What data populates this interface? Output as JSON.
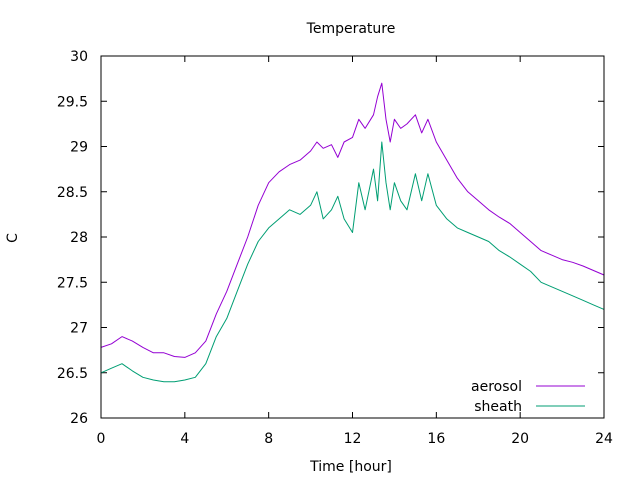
{
  "chart_data": {
    "type": "line",
    "title": "Temperature",
    "xlabel": "Time [hour]",
    "ylabel": "C",
    "xlim": [
      0,
      24
    ],
    "ylim": [
      26,
      30
    ],
    "xticks": [
      0,
      4,
      8,
      12,
      16,
      20,
      24
    ],
    "yticks": [
      26,
      26.5,
      27,
      27.5,
      28,
      28.5,
      29,
      29.5,
      30
    ],
    "grid": false,
    "legend_position": "bottom-right",
    "series": [
      {
        "name": "aerosol",
        "color": "#9400d3",
        "x": [
          0,
          0.5,
          1,
          1.5,
          2,
          2.5,
          3,
          3.5,
          4,
          4.5,
          5,
          5.5,
          6,
          6.5,
          7,
          7.5,
          8,
          8.5,
          9,
          9.5,
          10,
          10.3,
          10.6,
          11,
          11.3,
          11.6,
          12,
          12.3,
          12.6,
          13,
          13.2,
          13.4,
          13.6,
          13.8,
          14,
          14.3,
          14.6,
          15,
          15.3,
          15.6,
          16,
          16.5,
          17,
          17.5,
          18,
          18.5,
          19,
          19.5,
          20,
          20.5,
          21,
          21.5,
          22,
          22.5,
          23,
          23.5,
          24
        ],
        "values": [
          26.78,
          26.82,
          26.9,
          26.85,
          26.78,
          26.72,
          26.72,
          26.68,
          26.67,
          26.72,
          26.85,
          27.15,
          27.4,
          27.7,
          28.0,
          28.35,
          28.6,
          28.72,
          28.8,
          28.85,
          28.95,
          29.05,
          28.98,
          29.02,
          28.88,
          29.05,
          29.1,
          29.3,
          29.2,
          29.35,
          29.55,
          29.7,
          29.3,
          29.05,
          29.3,
          29.2,
          29.25,
          29.35,
          29.15,
          29.3,
          29.05,
          28.85,
          28.65,
          28.5,
          28.4,
          28.3,
          28.22,
          28.15,
          28.05,
          27.95,
          27.85,
          27.8,
          27.75,
          27.72,
          27.68,
          27.63,
          27.58
        ]
      },
      {
        "name": "sheath",
        "color": "#009e73",
        "x": [
          0,
          0.5,
          1,
          1.5,
          2,
          2.5,
          3,
          3.5,
          4,
          4.5,
          5,
          5.5,
          6,
          6.5,
          7,
          7.5,
          8,
          8.5,
          9,
          9.5,
          10,
          10.3,
          10.6,
          11,
          11.3,
          11.6,
          12,
          12.3,
          12.6,
          13,
          13.2,
          13.4,
          13.6,
          13.8,
          14,
          14.3,
          14.6,
          15,
          15.3,
          15.6,
          16,
          16.5,
          17,
          17.5,
          18,
          18.5,
          19,
          19.5,
          20,
          20.5,
          21,
          21.5,
          22,
          22.5,
          23,
          23.5,
          24
        ],
        "values": [
          26.5,
          26.55,
          26.6,
          26.52,
          26.45,
          26.42,
          26.4,
          26.4,
          26.42,
          26.45,
          26.6,
          26.9,
          27.1,
          27.4,
          27.7,
          27.95,
          28.1,
          28.2,
          28.3,
          28.25,
          28.35,
          28.5,
          28.2,
          28.3,
          28.45,
          28.2,
          28.05,
          28.6,
          28.3,
          28.75,
          28.4,
          29.05,
          28.6,
          28.3,
          28.6,
          28.4,
          28.3,
          28.7,
          28.4,
          28.7,
          28.35,
          28.2,
          28.1,
          28.05,
          28.0,
          27.95,
          27.85,
          27.78,
          27.7,
          27.62,
          27.5,
          27.45,
          27.4,
          27.35,
          27.3,
          27.25,
          27.2
        ]
      }
    ]
  }
}
